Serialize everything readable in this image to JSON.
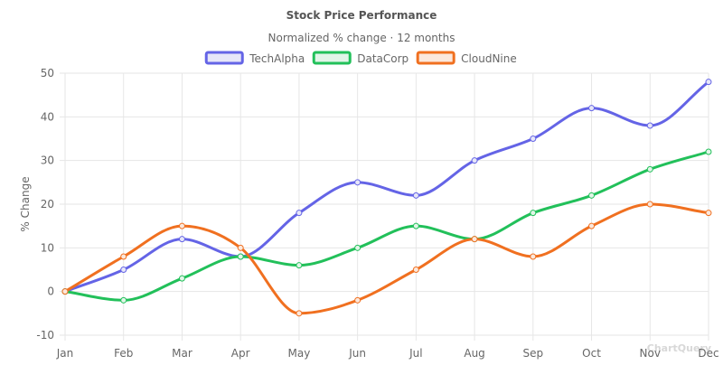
{
  "chart_data": {
    "type": "line",
    "title": "Stock Price Performance",
    "subtitle": "Normalized % change · 12 months",
    "xlabel": "",
    "ylabel": "% Change",
    "ylim": [
      -10,
      50
    ],
    "yticks": [
      -10,
      0,
      10,
      20,
      30,
      40,
      50
    ],
    "grid": true,
    "legend_position": "top-center",
    "categories": [
      "Jan",
      "Feb",
      "Mar",
      "Apr",
      "May",
      "Jun",
      "Jul",
      "Aug",
      "Sep",
      "Oct",
      "Nov",
      "Dec"
    ],
    "series": [
      {
        "name": "TechAlpha",
        "color": "#6464e6",
        "fill": "#e6e6f8",
        "values": [
          0,
          5,
          12,
          8,
          18,
          25,
          22,
          30,
          35,
          42,
          38,
          48
        ]
      },
      {
        "name": "DataCorp",
        "color": "#22c05a",
        "fill": "#e2f5e8",
        "values": [
          0,
          -2,
          3,
          8,
          6,
          10,
          15,
          12,
          18,
          22,
          28,
          32
        ]
      },
      {
        "name": "CloudNine",
        "color": "#f07020",
        "fill": "#fbe8dc",
        "values": [
          0,
          8,
          15,
          10,
          -5,
          -2,
          5,
          12,
          8,
          15,
          20,
          18
        ]
      }
    ],
    "watermark": "ChartQuery"
  }
}
